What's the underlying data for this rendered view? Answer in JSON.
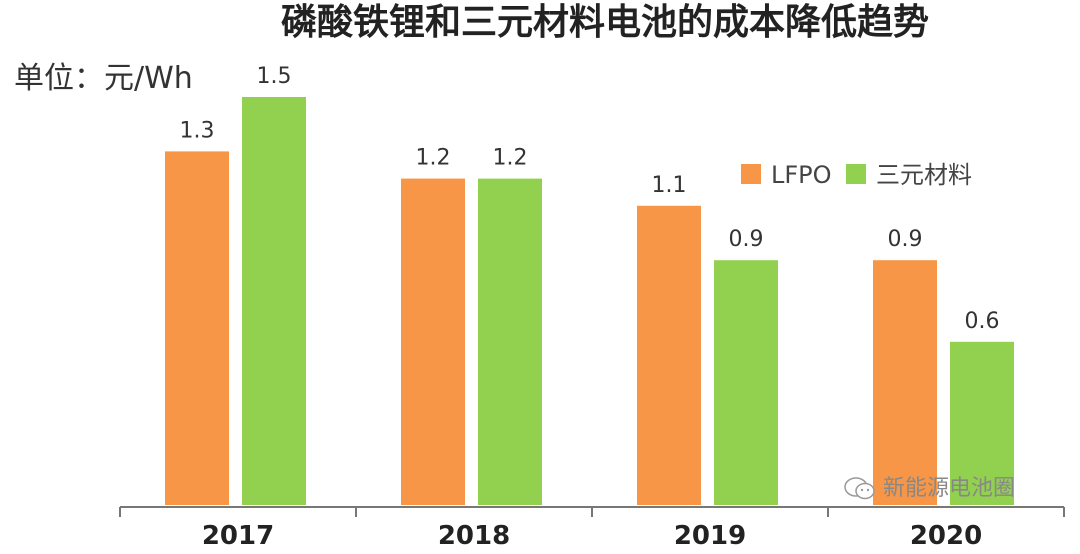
{
  "chart_data": {
    "type": "bar",
    "title": "磷酸铁锂和三元材料电池的成本降低趋势",
    "unit_label": "单位：元/Wh",
    "categories": [
      "2017",
      "2018",
      "2019",
      "2020"
    ],
    "series": [
      {
        "name": "LFPO",
        "color": "#F79646",
        "values": [
          1.3,
          1.2,
          1.1,
          0.9
        ],
        "labels": [
          "1.3",
          "1.2",
          "1.1",
          "0.9"
        ]
      },
      {
        "name": "三元材料",
        "color": "#92D050",
        "values": [
          1.5,
          1.2,
          0.9,
          0.6
        ],
        "labels": [
          "1.5",
          "1.2",
          "0.9",
          "0.6"
        ]
      }
    ],
    "ylim": [
      0,
      1.5
    ],
    "grid": false,
    "legend": "top-right"
  },
  "watermark": {
    "text": "新能源电池圈",
    "icon": "wechat-icon"
  }
}
